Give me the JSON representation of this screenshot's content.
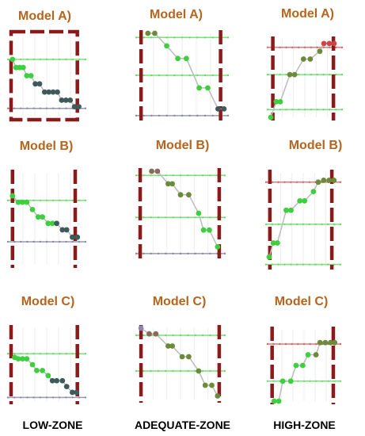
{
  "zone_labels": [
    "LOW-ZONE",
    "ADEQUATE-ZONE",
    "HIGH-ZONE"
  ],
  "colors": {
    "title": "#b5651d",
    "zone_border": "#8b1a1a",
    "ref_green": "#66dd66",
    "ref_red": "#e06060",
    "ref_gray": "#8888aa",
    "curve": "#bbbbbb",
    "point_green": "#3ecf3e",
    "point_dark": "#3e5a5a",
    "point_red": "#cc4444",
    "point_olive": "#6b8a3a",
    "point_brown": "#8a6a5a"
  },
  "chart_data": [
    {
      "type": "line",
      "title": "Model A)",
      "zone": "LOW-ZONE",
      "ylim": [
        0,
        100
      ],
      "ref_lines": [
        {
          "y": 70,
          "color": "green"
        },
        {
          "y": 10,
          "color": "gray"
        }
      ],
      "zone_bounds": [
        0,
        93
      ],
      "border_style": "box",
      "series": [
        {
          "x": [
            2,
            7,
            12,
            17,
            22,
            28,
            34,
            40,
            47,
            53,
            59,
            65,
            71,
            77,
            83,
            89,
            95
          ],
          "y": [
            70,
            60,
            60,
            60,
            50,
            50,
            40,
            40,
            30,
            30,
            30,
            30,
            20,
            20,
            20,
            12,
            12
          ],
          "colors": [
            "green",
            "green",
            "green",
            "green",
            "green",
            "green",
            "dark",
            "dark",
            "dark",
            "dark",
            "dark",
            "dark",
            "dark",
            "dark",
            "dark",
            "dark",
            "dark"
          ]
        }
      ]
    },
    {
      "type": "line",
      "title": "Model A)",
      "zone": "ADEQUATE-ZONE",
      "ylim": [
        0,
        100
      ],
      "ref_lines": [
        {
          "y": 95,
          "color": "green"
        },
        {
          "y": 50,
          "color": "green"
        },
        {
          "y": 2,
          "color": "gray"
        }
      ],
      "zone_bounds": [
        2,
        95
      ],
      "border_style": "sides",
      "series": [
        {
          "x": [
            10,
            18,
            32,
            45,
            55,
            70,
            80,
            92,
            99
          ],
          "y": [
            100,
            100,
            85,
            70,
            70,
            35,
            35,
            10,
            10
          ],
          "colors": [
            "olive",
            "olive",
            "green",
            "green",
            "green",
            "green",
            "green",
            "dark",
            "dark"
          ]
        }
      ]
    },
    {
      "type": "line",
      "title": "Model A)",
      "zone": "HIGH-ZONE",
      "ylim": [
        0,
        100
      ],
      "ref_lines": [
        {
          "y": 90,
          "color": "red"
        },
        {
          "y": 55,
          "color": "green"
        },
        {
          "y": 10,
          "color": "green"
        }
      ],
      "zone_bounds": [
        3,
        92
      ],
      "border_style": "sides",
      "series": [
        {
          "x": [
            0,
            8,
            14,
            28,
            35,
            48,
            58,
            72,
            78,
            86,
            93
          ],
          "y": [
            0,
            20,
            20,
            55,
            55,
            75,
            75,
            85,
            95,
            95,
            95
          ],
          "colors": [
            "green",
            "green",
            "green",
            "olive",
            "olive",
            "olive",
            "olive",
            "olive",
            "red",
            "red",
            "red"
          ]
        }
      ]
    },
    {
      "type": "line",
      "title": "Model B)",
      "zone": "LOW-ZONE",
      "ylim": [
        0,
        100
      ],
      "ref_lines": [
        {
          "y": 70,
          "color": "green"
        },
        {
          "y": 25,
          "color": "gray"
        }
      ],
      "zone_bounds": [
        2,
        90
      ],
      "border_style": "sides",
      "series": [
        {
          "x": [
            2,
            10,
            16,
            22,
            30,
            38,
            44,
            52,
            58,
            64,
            72,
            78,
            86,
            93
          ],
          "y": [
            75,
            68,
            68,
            68,
            60,
            52,
            52,
            45,
            45,
            45,
            38,
            38,
            30,
            30
          ],
          "colors": [
            "green",
            "green",
            "green",
            "green",
            "green",
            "green",
            "green",
            "green",
            "green",
            "dark",
            "dark",
            "dark",
            "dark",
            "dark"
          ]
        }
      ]
    },
    {
      "type": "line",
      "title": "Model B)",
      "zone": "ADEQUATE-ZONE",
      "ylim": [
        0,
        100
      ],
      "ref_lines": [
        {
          "y": 95,
          "color": "green"
        },
        {
          "y": 45,
          "color": "green"
        },
        {
          "y": 2,
          "color": "gray"
        }
      ],
      "zone_bounds": [
        1,
        97
      ],
      "border_style": "sides",
      "series": [
        {
          "x": [
            15,
            22,
            35,
            40,
            50,
            60,
            72,
            78,
            85,
            95
          ],
          "y": [
            100,
            100,
            85,
            85,
            72,
            72,
            50,
            30,
            30,
            10
          ],
          "colors": [
            "brown",
            "brown",
            "olive",
            "olive",
            "olive",
            "olive",
            "green",
            "green",
            "green",
            "green"
          ]
        }
      ]
    },
    {
      "type": "line",
      "title": "Model B)",
      "zone": "HIGH-ZONE",
      "ylim": [
        0,
        100
      ],
      "ref_lines": [
        {
          "y": 90,
          "color": "red"
        },
        {
          "y": 45,
          "color": "green"
        },
        {
          "y": 2,
          "color": "green"
        }
      ],
      "zone_bounds": [
        1,
        92
      ],
      "border_style": "sides",
      "series": [
        {
          "x": [
            0,
            6,
            12,
            25,
            32,
            45,
            52,
            65,
            72,
            80,
            88,
            95
          ],
          "y": [
            10,
            25,
            25,
            60,
            60,
            70,
            70,
            80,
            90,
            92,
            92,
            92
          ],
          "colors": [
            "green",
            "green",
            "green",
            "green",
            "green",
            "green",
            "green",
            "green",
            "olive",
            "olive",
            "olive",
            "olive"
          ]
        }
      ]
    },
    {
      "type": "line",
      "title": "Model C)",
      "zone": "LOW-ZONE",
      "ylim": [
        0,
        100
      ],
      "ref_lines": [
        {
          "y": 65,
          "color": "green"
        },
        {
          "y": 5,
          "color": "gray"
        }
      ],
      "zone_bounds": [
        0,
        93
      ],
      "border_style": "sides",
      "series": [
        {
          "x": [
            5,
            10,
            16,
            22,
            30,
            36,
            44,
            52,
            58,
            64,
            72,
            78,
            86,
            92
          ],
          "y": [
            60,
            58,
            58,
            58,
            50,
            42,
            42,
            35,
            28,
            28,
            28,
            20,
            12,
            12
          ],
          "colors": [
            "green",
            "green",
            "green",
            "green",
            "green",
            "green",
            "green",
            "green",
            "dark",
            "dark",
            "dark",
            "dark",
            "dark",
            "dark"
          ]
        }
      ]
    },
    {
      "type": "line",
      "title": "Model C)",
      "zone": "ADEQUATE-ZONE",
      "ylim": [
        0,
        100
      ],
      "ref_lines": [
        {
          "y": 90,
          "color": "green"
        },
        {
          "y": 40,
          "color": "green"
        }
      ],
      "zone_bounds": [
        2,
        97
      ],
      "border_style": "sides",
      "series": [
        {
          "x": [
            2,
            12,
            20,
            35,
            40,
            52,
            60,
            72,
            80,
            88,
            95
          ],
          "y": [
            100,
            92,
            92,
            75,
            75,
            60,
            60,
            40,
            20,
            20,
            5
          ],
          "colors": [
            "gray",
            "brown",
            "brown",
            "olive",
            "olive",
            "olive",
            "olive",
            "olive",
            "olive",
            "olive",
            "olive"
          ]
        }
      ]
    },
    {
      "type": "line",
      "title": "Model C)",
      "zone": "HIGH-ZONE",
      "ylim": [
        0,
        100
      ],
      "ref_lines": [
        {
          "y": 80,
          "color": "red"
        },
        {
          "y": 28,
          "color": "green"
        }
      ],
      "zone_bounds": [
        2,
        94
      ],
      "border_style": "sides",
      "series": [
        {
          "x": [
            5,
            12,
            18,
            30,
            38,
            48,
            56,
            68,
            74,
            82,
            90,
            96
          ],
          "y": [
            0,
            0,
            28,
            28,
            50,
            50,
            65,
            65,
            82,
            82,
            82,
            82
          ],
          "colors": [
            "green",
            "green",
            "green",
            "green",
            "green",
            "green",
            "green",
            "olive",
            "olive",
            "olive",
            "olive",
            "olive"
          ]
        }
      ]
    }
  ]
}
